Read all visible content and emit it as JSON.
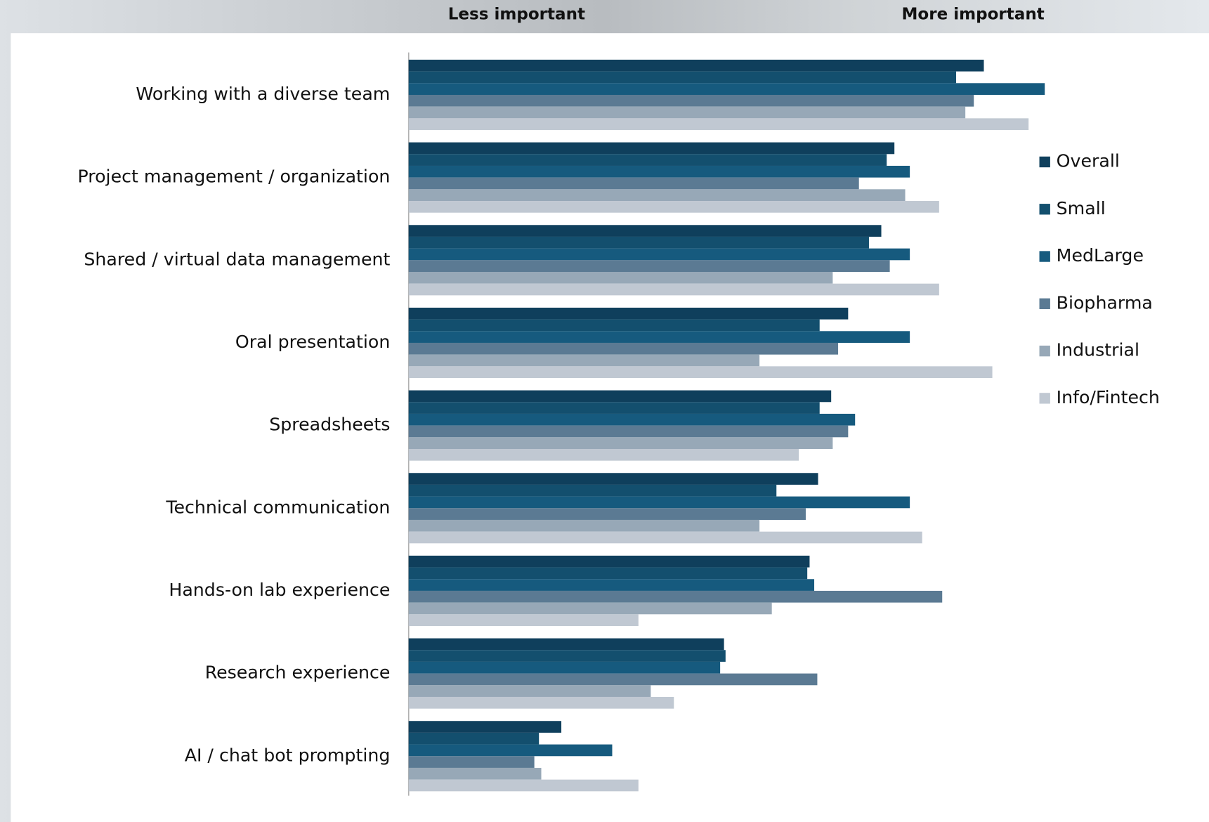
{
  "chart_data": {
    "type": "bar",
    "orientation": "horizontal",
    "annotations": [
      "Less important",
      "More important"
    ],
    "categories": [
      "Working with a diverse team",
      "Project management / organization",
      "Shared / virtual data management",
      "Oral presentation",
      "Spreadsheets",
      "Technical communication",
      "Hands-on lab experience",
      "Research experience",
      "AI / chat bot prompting"
    ],
    "series": [
      {
        "name": "Overall",
        "color": "#0f3f5c",
        "values": [
          74.6,
          63,
          61.3,
          57,
          54.8,
          53.1,
          52,
          40.9,
          19.8
        ]
      },
      {
        "name": "Small",
        "color": "#134f6e",
        "values": [
          71,
          62,
          59.7,
          53.3,
          53.3,
          47.7,
          51.7,
          41.1,
          16.9
        ]
      },
      {
        "name": "MedLarge",
        "color": "#165a7e",
        "values": [
          82.5,
          65,
          65,
          65,
          57.9,
          65,
          52.6,
          40.4,
          26.4
        ]
      },
      {
        "name": "Biopharma",
        "color": "#5b7a93",
        "values": [
          73.3,
          58.4,
          62.4,
          55.7,
          57,
          51.5,
          69.2,
          53,
          16.3
        ]
      },
      {
        "name": "Industrial",
        "color": "#97a8b7",
        "values": [
          72.2,
          64.4,
          55,
          45.5,
          55,
          45.5,
          47.1,
          31.4,
          17.2
        ]
      },
      {
        "name": "Info/Fintech",
        "color": "#c0c8d2",
        "values": [
          80.4,
          68.8,
          68.8,
          75.7,
          50.6,
          66.6,
          29.8,
          34.4,
          29.8
        ]
      }
    ],
    "xlim": [
      0,
      100
    ],
    "legend": "right"
  }
}
